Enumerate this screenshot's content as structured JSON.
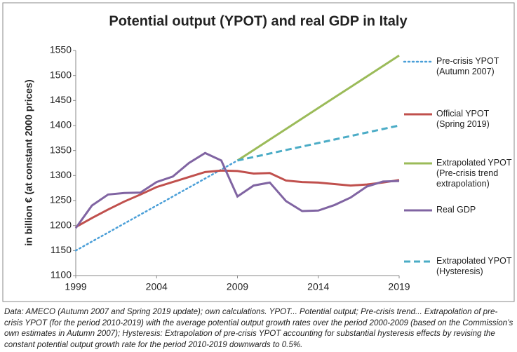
{
  "chart_data": {
    "type": "line",
    "title": "Potential output (YPOT) and real GDP in Italy",
    "y_label": "in billion € (at constant 2000 prices)",
    "x": [
      1999,
      2000,
      2001,
      2002,
      2003,
      2004,
      2005,
      2006,
      2007,
      2008,
      2009,
      2010,
      2011,
      2012,
      2013,
      2014,
      2015,
      2016,
      2017,
      2018,
      2019
    ],
    "xlim": [
      1999,
      2019
    ],
    "xticks": [
      1999,
      2004,
      2009,
      2014,
      2019
    ],
    "ylim": [
      1100,
      1550
    ],
    "yticks": [
      1100,
      1150,
      1200,
      1250,
      1300,
      1350,
      1400,
      1450,
      1500,
      1550
    ],
    "series": [
      {
        "name": "Pre-crisis YPOT (Autumn 2007)",
        "color": "#4a9fd8",
        "style": "dotted",
        "values": [
          1150,
          1168,
          1186,
          1204,
          1222,
          1240,
          1258,
          1276,
          1294,
          1312,
          1330,
          null,
          null,
          null,
          null,
          null,
          null,
          null,
          null,
          null,
          null
        ]
      },
      {
        "name": "Official YPOT (Spring 2019)",
        "color": "#c0504d",
        "style": "solid",
        "values": [
          1197,
          1215,
          1232,
          1248,
          1262,
          1277,
          1287,
          1297,
          1307,
          1310,
          1309,
          1304,
          1305,
          1290,
          1287,
          1286,
          1283,
          1280,
          1282,
          1286,
          1291
        ]
      },
      {
        "name": "Extrapolated YPOT (Pre-crisis trend extrapolation)",
        "color": "#9bbb59",
        "style": "solid",
        "values": [
          null,
          null,
          null,
          null,
          null,
          null,
          null,
          null,
          null,
          null,
          1330,
          1351,
          1372,
          1393,
          1414,
          1435,
          1456,
          1477,
          1498,
          1519,
          1540
        ]
      },
      {
        "name": "Real GDP",
        "color": "#8064a2",
        "style": "solid",
        "values": [
          1195,
          1240,
          1262,
          1265,
          1266,
          1287,
          1298,
          1325,
          1345,
          1330,
          1258,
          1280,
          1286,
          1249,
          1229,
          1230,
          1241,
          1256,
          1278,
          1288,
          1289
        ]
      },
      {
        "name": "Extrapolated YPOT (Hysteresis)",
        "color": "#4bacc6",
        "style": "dashed",
        "values": [
          null,
          null,
          null,
          null,
          null,
          null,
          null,
          null,
          null,
          null,
          1330,
          1337,
          1344,
          1351,
          1358,
          1365,
          1372,
          1379,
          1386,
          1393,
          1400
        ]
      }
    ],
    "note": "Data: AMECO (Autumn 2007 and Spring 2019 update); own calculations. YPOT... Potential output; Pre-crisis trend... Extrapolation of pre-crisis YPOT (for the period 2010-2019) with the average potential output growth rates over the period 2000-2009 (based on the Commission’s own estimates in Autumn 2007); Hysteresis: Extrapolation of pre-crisis YPOT accounting for substantial hysteresis effects by revising the constant potential output growth rate for the period 2010-2019 downwards to 0.5%."
  }
}
